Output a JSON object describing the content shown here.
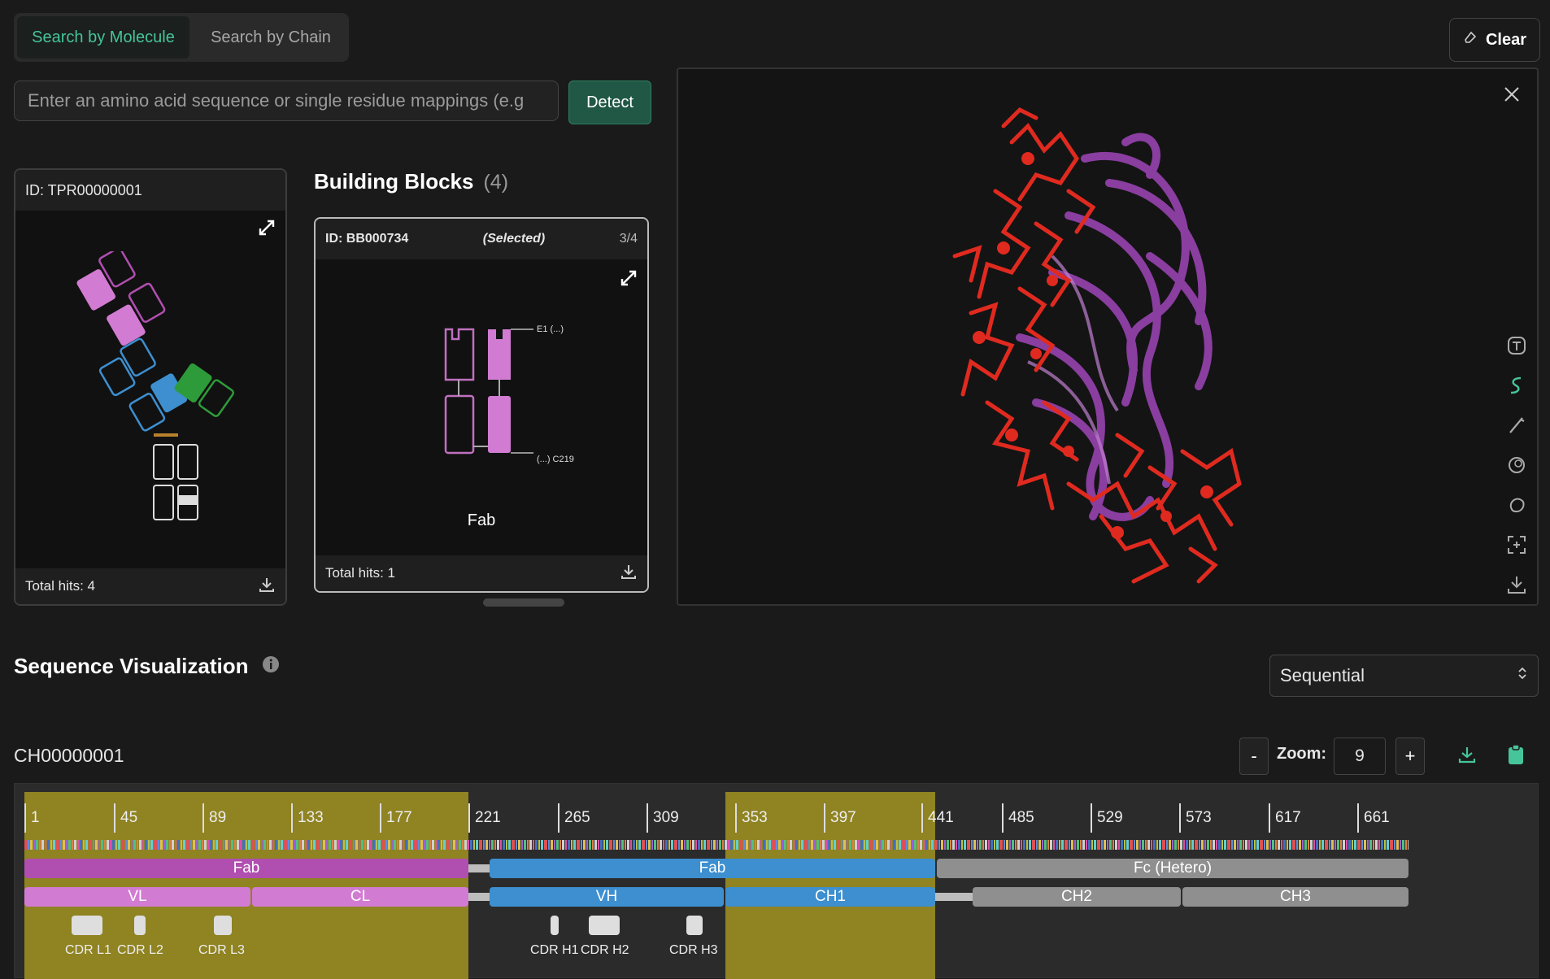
{
  "tabs": {
    "molecule": "Search by Molecule",
    "chain": "Search by Chain"
  },
  "clear_label": "Clear",
  "search": {
    "placeholder": "Enter an amino acid sequence or single residue mappings (e.g"
  },
  "detect_label": "Detect",
  "molecule_card": {
    "id": "ID: TPR00000001",
    "footer": "Total hits: 4"
  },
  "building_blocks": {
    "title": "Building Blocks",
    "count": "(4)"
  },
  "bb_card": {
    "id": "ID: BB000734",
    "selected": "(Selected)",
    "page": "3/4",
    "name": "Fab",
    "footer": "Total hits: 1",
    "label_top": "E1 (...)",
    "label_bottom": "(...) C219"
  },
  "sequence": {
    "title": "Sequence Visualization",
    "mode": "Sequential",
    "chain_id": "CH00000001",
    "zoom_label": "Zoom:",
    "zoom_value": "9",
    "minus": "-",
    "plus": "+"
  },
  "ticks": [
    "1",
    "45",
    "89",
    "133",
    "177",
    "221",
    "265",
    "309",
    "353",
    "397",
    "441",
    "485",
    "529",
    "573",
    "617",
    "661"
  ],
  "domains": {
    "fab1": "Fab",
    "fab2": "Fab",
    "fc": "Fc (Hetero)",
    "vl": "VL",
    "cl": "CL",
    "vh": "VH",
    "ch1": "CH1",
    "ch2": "CH2",
    "ch3": "CH3"
  },
  "cdrs": {
    "l1": "CDR L1",
    "l2": "CDR L2",
    "l3": "CDR L3",
    "h1": "CDR H1",
    "h2": "CDR H2",
    "h3": "CDR H3"
  },
  "colors": {
    "accent": "#46c49a",
    "fab_light": "#b04fb0",
    "light_pink": "#d27bd2",
    "heavy_blue": "#3d8fd0",
    "fc_gray": "#8f8f8f",
    "region_gold": "#8f8322",
    "structure_red": "#e02a1f",
    "structure_purple": "#8a3ea0"
  }
}
